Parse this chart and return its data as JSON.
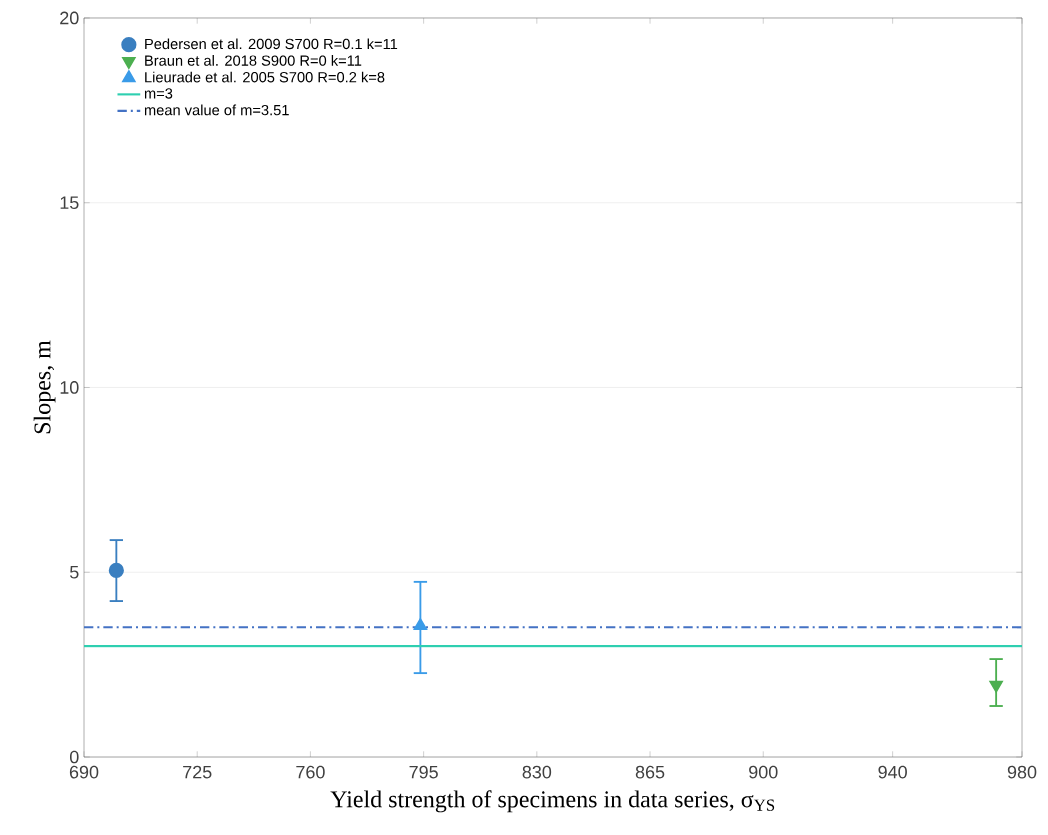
{
  "chart_data": {
    "type": "scatter",
    "xlabel": "Yield strength of specimens in data series, σ$_{YS}$",
    "ylabel": "Slopes, m",
    "xlim": [
      690,
      980
    ],
    "ylim": [
      0,
      20
    ],
    "xticks": [
      690,
      725,
      760,
      795,
      830,
      865,
      900,
      940,
      980
    ],
    "yticks": [
      0,
      5,
      10,
      15,
      20
    ],
    "grid": "y",
    "legend": "top left",
    "series": [
      {
        "name": "Pedersen et al. 2009 S700 R=0.1 k=11",
        "marker": "circle",
        "color": "#3a7fc0",
        "x": [
          700
        ],
        "values": [
          5.05
        ],
        "errors": [
          [
            4.22,
            5.87
          ]
        ]
      },
      {
        "name": "Braun et al. 2018 S900 R=0 k=11",
        "marker": "triangle-down",
        "color": "#4caf50",
        "x": [
          972
        ],
        "values": [
          1.95
        ],
        "errors": [
          [
            1.38,
            2.65
          ]
        ]
      },
      {
        "name": "Lieurade et al. 2005 S700 R=0.2 k=8",
        "marker": "triangle",
        "color": "#3a9be8",
        "x": [
          794
        ],
        "values": [
          3.55
        ],
        "errors": [
          [
            2.27,
            4.74
          ]
        ]
      },
      {
        "name": "m=3",
        "type": "line",
        "line_style": "solid",
        "color": "#2ecfb0",
        "x": [
          690,
          980
        ],
        "values": [
          3,
          3
        ]
      },
      {
        "name": "mean value of m=3.51",
        "type": "line",
        "line_style": "dashdot",
        "color": "#4472c4",
        "x": [
          690,
          980
        ],
        "values": [
          3.51,
          3.51
        ]
      }
    ]
  }
}
